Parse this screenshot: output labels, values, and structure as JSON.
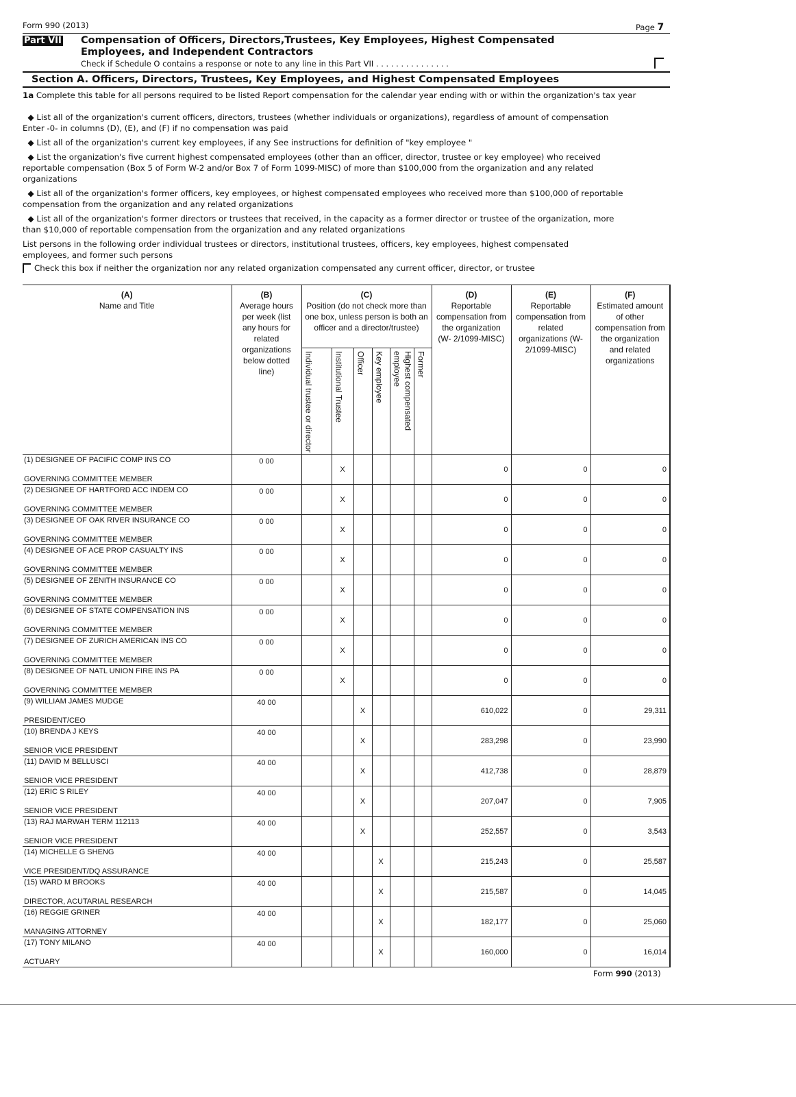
{
  "header": {
    "form": "Form 990 (2013)",
    "page_label": "Page",
    "page_num": "7"
  },
  "part": {
    "badge": "Part VII",
    "title_line1": "Compensation of Officers, Directors,Trustees, Key Employees, Highest Compensated",
    "title_line2": "Employees, and Independent Contractors",
    "schedule_check": "Check if Schedule O contains a response or note to any line in this Part VII . . . . . . . . . . . . . . ."
  },
  "section": {
    "title": "Section A. Officers, Directors, Trustees, Key Employees, and Highest Compensated Employees"
  },
  "instructions": {
    "1a_label": "1a",
    "1a": "Complete this table for all persons required to be listed  Report compensation for the calendar year ending with or within the organization's tax year",
    "b1": "List all of the organization's current officers, directors, trustees (whether individuals or organizations), regardless of amount of compensation  Enter -0- in columns (D), (E), and (F) if no compensation was paid",
    "b2": "List all of the organization's current key employees, if any  See instructions for definition of \"key employee \"",
    "b3": "List the organization's five current highest compensated employees (other than an officer, director, trustee or key employee) who received reportable compensation (Box 5 of Form W-2 and/or Box 7 of Form 1099-MISC) of more than $100,000 from the organization and any related organizations",
    "b4": "List all of the organization's former officers, key employees, or highest compensated employees who received more than $100,000 of reportable compensation from the organization and any related organizations",
    "b5": "List all of the organization's former directors or trustees that received, in the capacity as a former director or trustee of the organization, more than $10,000 of reportable compensation from the organization and any related organizations",
    "order": "List persons in the following order  individual trustees or directors, institutional trustees, officers, key employees, highest compensated employees, and former such persons",
    "checkbox": "Check this box if neither the organization nor any related organization compensated any current officer, director, or trustee"
  },
  "columns": {
    "a_letter": "(A)",
    "a": "Name and Title",
    "b_letter": "(B)",
    "b": "Average hours per week (list any hours for related organizations below dotted line)",
    "c_letter": "(C)",
    "c": "Position (do not check more than one box, unless person is both an officer and a director/trustee)",
    "c_sub": [
      "Individual trustee or director",
      "Institutional Trustee",
      "Officer",
      "Key employee",
      "Highest compensated employee",
      "Former"
    ],
    "d_letter": "(D)",
    "d": "Reportable compensation from the organization (W- 2/1099-MISC)",
    "e_letter": "(E)",
    "e": "Reportable compensation from related organizations (W- 2/1099-MISC)",
    "f_letter": "(F)",
    "f": "Estimated amount of other compensation from the organization and related organizations"
  },
  "rows": [
    {
      "name": "(1) DESIGNEE OF PACIFIC COMP INS CO",
      "title": "GOVERNING COMMITTEE MEMBER",
      "hours": "0 00",
      "position": 1,
      "d": "0",
      "e": "0",
      "f": "0"
    },
    {
      "name": "(2) DESIGNEE OF HARTFORD ACC INDEM CO",
      "title": "GOVERNING COMMITTEE MEMBER",
      "hours": "0 00",
      "position": 1,
      "d": "0",
      "e": "0",
      "f": "0"
    },
    {
      "name": "(3) DESIGNEE OF OAK RIVER INSURANCE CO",
      "title": "GOVERNING COMMITTEE MEMBER",
      "hours": "0 00",
      "position": 1,
      "d": "0",
      "e": "0",
      "f": "0"
    },
    {
      "name": "(4) DESIGNEE OF ACE PROP CASUALTY INS",
      "title": "GOVERNING COMMITTEE MEMBER",
      "hours": "0 00",
      "position": 1,
      "d": "0",
      "e": "0",
      "f": "0"
    },
    {
      "name": "(5) DESIGNEE OF ZENITH INSURANCE CO",
      "title": "GOVERNING COMMITTEE MEMBER",
      "hours": "0 00",
      "position": 1,
      "d": "0",
      "e": "0",
      "f": "0"
    },
    {
      "name": "(6) DESIGNEE OF STATE COMPENSATION INS",
      "title": "GOVERNING COMMITTEE MEMBER",
      "hours": "0 00",
      "position": 1,
      "d": "0",
      "e": "0",
      "f": "0"
    },
    {
      "name": "(7) DESIGNEE OF ZURICH AMERICAN INS CO",
      "title": "GOVERNING COMMITTEE MEMBER",
      "hours": "0 00",
      "position": 1,
      "d": "0",
      "e": "0",
      "f": "0"
    },
    {
      "name": "(8) DESIGNEE OF NATL UNION FIRE INS PA",
      "title": "GOVERNING COMMITTEE MEMBER",
      "hours": "0 00",
      "position": 1,
      "d": "0",
      "e": "0",
      "f": "0"
    },
    {
      "name": "(9) WILLIAM JAMES MUDGE",
      "title": "PRESIDENT/CEO",
      "hours": "40 00",
      "position": 2,
      "d": "610,022",
      "e": "0",
      "f": "29,311"
    },
    {
      "name": "(10) BRENDA J KEYS",
      "title": "SENIOR VICE PRESIDENT",
      "hours": "40 00",
      "position": 2,
      "d": "283,298",
      "e": "0",
      "f": "23,990"
    },
    {
      "name": "(11) DAVID M BELLUSCI",
      "title": "SENIOR VICE PRESIDENT",
      "hours": "40 00",
      "position": 2,
      "d": "412,738",
      "e": "0",
      "f": "28,879"
    },
    {
      "name": "(12) ERIC S RILEY",
      "title": "SENIOR VICE PRESIDENT",
      "hours": "40 00",
      "position": 2,
      "d": "207,047",
      "e": "0",
      "f": "7,905"
    },
    {
      "name": "(13) RAJ MARWAH TERM 112113",
      "title": "SENIOR VICE PRESIDENT",
      "hours": "40 00",
      "position": 2,
      "d": "252,557",
      "e": "0",
      "f": "3,543"
    },
    {
      "name": "(14) MICHELLE G SHENG",
      "title": "VICE PRESIDENT/DQ ASSURANCE",
      "hours": "40 00",
      "position": 3,
      "d": "215,243",
      "e": "0",
      "f": "25,587"
    },
    {
      "name": "(15) WARD M BROOKS",
      "title": "DIRECTOR, ACUTARIAL RESEARCH",
      "hours": "40 00",
      "position": 3,
      "d": "215,587",
      "e": "0",
      "f": "14,045"
    },
    {
      "name": "(16) REGGIE GRINER",
      "title": "MANAGING ATTORNEY",
      "hours": "40 00",
      "position": 3,
      "d": "182,177",
      "e": "0",
      "f": "25,060"
    },
    {
      "name": "(17) TONY MILANO",
      "title": "ACTUARY",
      "hours": "40 00",
      "position": 3,
      "d": "160,000",
      "e": "0",
      "f": "16,014"
    }
  ],
  "check_mark": "X",
  "footer": {
    "form_prefix": "Form",
    "form_num": "990",
    "year": "(2013)"
  }
}
